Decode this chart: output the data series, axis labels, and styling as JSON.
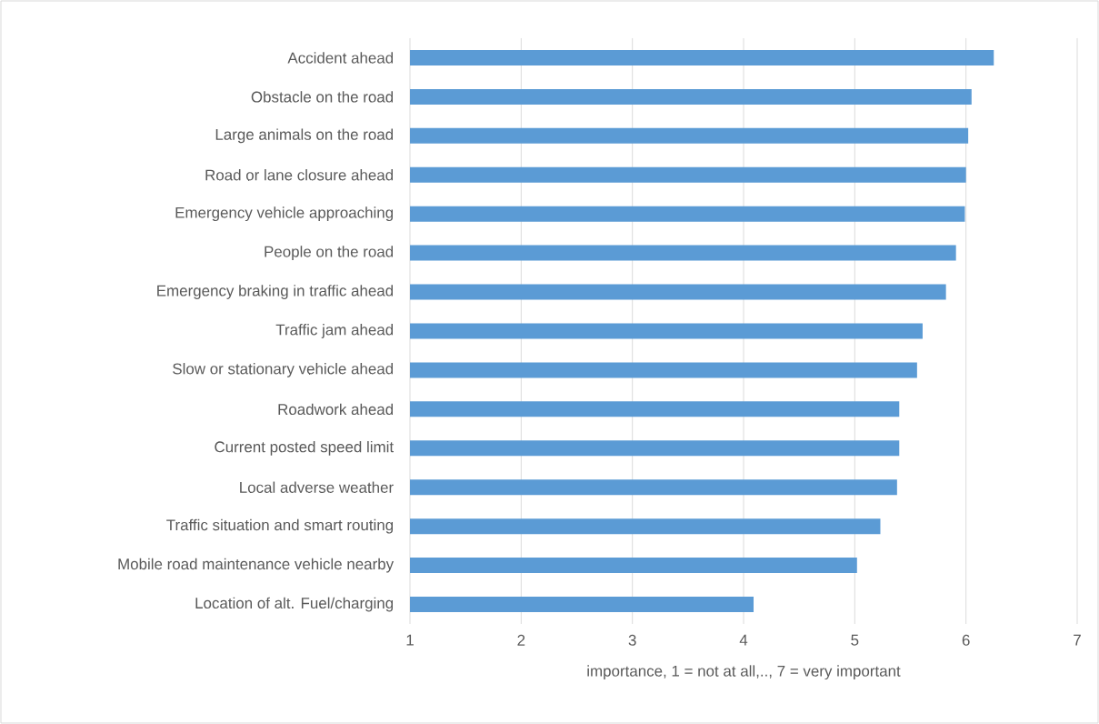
{
  "chart_data": {
    "type": "bar",
    "orientation": "horizontal",
    "categories": [
      "Accident ahead",
      "Obstacle on the road",
      "Large animals on the road",
      "Road or lane closure ahead",
      "Emergency vehicle approaching",
      "People on the road",
      "Emergency braking in traffic ahead",
      "Traffic jam ahead",
      "Slow or stationary vehicle ahead",
      "Roadwork ahead",
      "Current posted speed limit",
      "Local adverse weather",
      "Traffic situation and smart routing",
      "Mobile road maintenance vehicle nearby",
      "Location of alt. Fuel/charging"
    ],
    "values": [
      6.25,
      6.05,
      6.02,
      6.0,
      5.99,
      5.91,
      5.82,
      5.61,
      5.56,
      5.4,
      5.4,
      5.38,
      5.23,
      5.02,
      4.09
    ],
    "color": "#5b9bd5",
    "xlabel": "importance, 1 = not at all,.., 7 = very important",
    "xlim": [
      1,
      7
    ],
    "xticks": [
      1,
      2,
      3,
      4,
      5,
      6,
      7
    ],
    "grid": "x"
  }
}
